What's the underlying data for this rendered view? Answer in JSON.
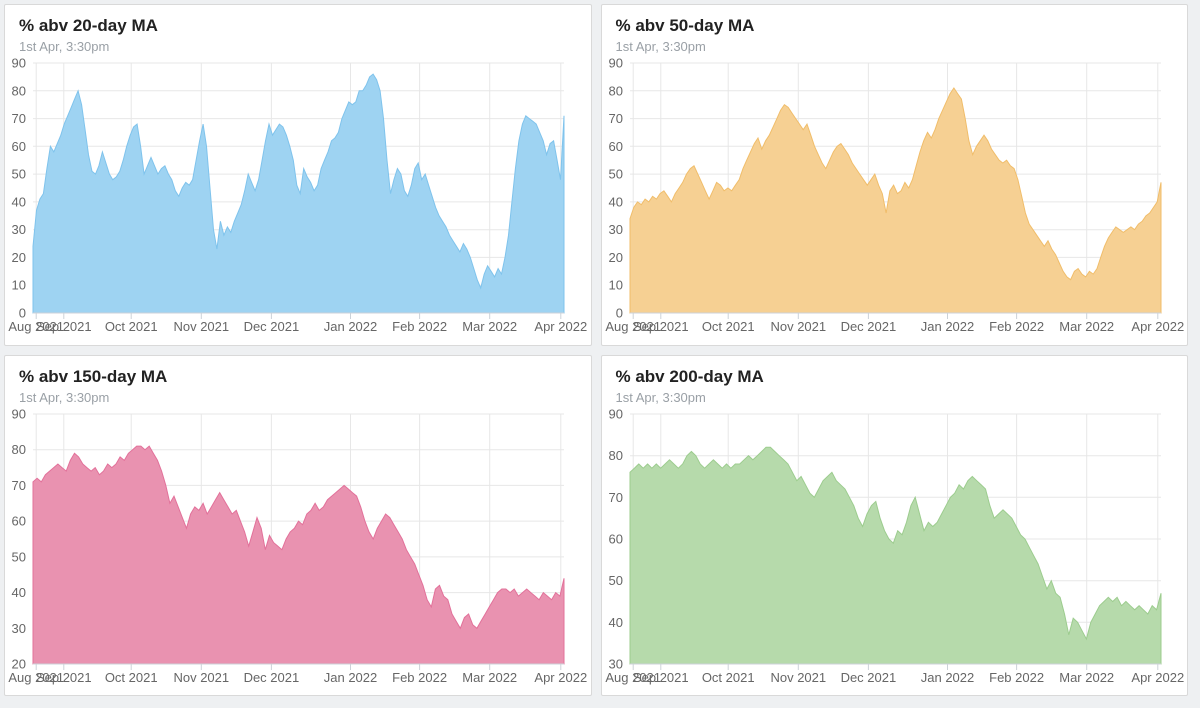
{
  "page": {
    "background": "#eef0f2",
    "card_background": "#ffffff",
    "grid_line_color": "#e7e7e7",
    "axis_line_color": "#ccd2d8",
    "axis_label_color": "#666666"
  },
  "chart_data": [
    {
      "type": "area",
      "title": "% abv 20-day MA",
      "subtitle": "1st Apr, 3:30pm",
      "fill_color": "#9ed3f2",
      "line_color": "#7fc3ec",
      "ylim": [
        0,
        90
      ],
      "ytick_step": 10,
      "grid": true,
      "legend": "none",
      "xticks": [
        {
          "pos": 0.006,
          "label": "Aug 2021"
        },
        {
          "pos": 0.058,
          "label": "Sep 2021"
        },
        {
          "pos": 0.185,
          "label": "Oct 2021"
        },
        {
          "pos": 0.317,
          "label": "Nov 2021"
        },
        {
          "pos": 0.449,
          "label": "Dec 2021"
        },
        {
          "pos": 0.598,
          "label": "Jan 2022"
        },
        {
          "pos": 0.728,
          "label": "Feb 2022"
        },
        {
          "pos": 0.86,
          "label": "Mar 2022"
        },
        {
          "pos": 0.994,
          "label": "Apr 2022"
        }
      ],
      "values": [
        24,
        37,
        41,
        43,
        52,
        60,
        58,
        61,
        64,
        68,
        71,
        74,
        77,
        80,
        75,
        66,
        57,
        51,
        50,
        53,
        58,
        54,
        50,
        48,
        49,
        51,
        55,
        60,
        64,
        67,
        68,
        60,
        50,
        53,
        56,
        53,
        50,
        52,
        53,
        50,
        48,
        44,
        42,
        45,
        47,
        46,
        48,
        55,
        62,
        68,
        60,
        45,
        30,
        23,
        33,
        28,
        31,
        29,
        33,
        36,
        39,
        44,
        50,
        47,
        44,
        48,
        55,
        62,
        68,
        64,
        66,
        68,
        67,
        64,
        60,
        55,
        46,
        43,
        52,
        49,
        47,
        44,
        46,
        52,
        55,
        58,
        62,
        63,
        65,
        70,
        73,
        76,
        75,
        76,
        80,
        80,
        82,
        85,
        86,
        84,
        80,
        70,
        55,
        43,
        48,
        52,
        50,
        44,
        42,
        46,
        52,
        54,
        48,
        50,
        46,
        42,
        38,
        35,
        33,
        31,
        28,
        26,
        24,
        22,
        25,
        23,
        20,
        16,
        12,
        9,
        14,
        17,
        15,
        13,
        16,
        14,
        20,
        28,
        40,
        52,
        62,
        68,
        71,
        70,
        69,
        68,
        65,
        62,
        57,
        61,
        62,
        55,
        48,
        71
      ]
    },
    {
      "type": "area",
      "title": "% abv 50-day MA",
      "subtitle": "1st Apr, 3:30pm",
      "fill_color": "#f6d093",
      "line_color": "#f0bd6a",
      "ylim": [
        0,
        90
      ],
      "ytick_step": 10,
      "grid": true,
      "legend": "none",
      "xticks": [
        {
          "pos": 0.006,
          "label": "Aug 2021"
        },
        {
          "pos": 0.058,
          "label": "Sep 2021"
        },
        {
          "pos": 0.185,
          "label": "Oct 2021"
        },
        {
          "pos": 0.317,
          "label": "Nov 2021"
        },
        {
          "pos": 0.449,
          "label": "Dec 2021"
        },
        {
          "pos": 0.598,
          "label": "Jan 2022"
        },
        {
          "pos": 0.728,
          "label": "Feb 2022"
        },
        {
          "pos": 0.86,
          "label": "Mar 2022"
        },
        {
          "pos": 0.994,
          "label": "Apr 2022"
        }
      ],
      "values": [
        34,
        38,
        40,
        39,
        41,
        40,
        42,
        41,
        43,
        44,
        42,
        40,
        43,
        45,
        47,
        50,
        52,
        53,
        50,
        47,
        44,
        41,
        44,
        47,
        46,
        44,
        45,
        44,
        46,
        48,
        52,
        55,
        58,
        61,
        63,
        59,
        62,
        64,
        67,
        70,
        73,
        75,
        74,
        72,
        70,
        68,
        66,
        68,
        64,
        60,
        57,
        54,
        52,
        55,
        58,
        60,
        61,
        59,
        57,
        54,
        52,
        50,
        48,
        46,
        48,
        50,
        46,
        43,
        36,
        44,
        46,
        43,
        44,
        47,
        45,
        48,
        53,
        58,
        62,
        65,
        63,
        66,
        70,
        73,
        76,
        79,
        81,
        79,
        77,
        70,
        62,
        57,
        60,
        62,
        64,
        62,
        59,
        57,
        55,
        54,
        55,
        53,
        52,
        48,
        42,
        36,
        32,
        30,
        28,
        26,
        24,
        26,
        23,
        21,
        18,
        15,
        13,
        12,
        15,
        16,
        14,
        13,
        15,
        14,
        16,
        20,
        24,
        27,
        29,
        31,
        30,
        29,
        30,
        31,
        30,
        32,
        33,
        35,
        36,
        38,
        40,
        47
      ]
    },
    {
      "type": "area",
      "title": "% abv 150-day MA",
      "subtitle": "1st Apr, 3:30pm",
      "fill_color": "#e992b0",
      "line_color": "#e2719a",
      "ylim": [
        20,
        90
      ],
      "ytick_step": 10,
      "grid": true,
      "legend": "none",
      "xticks": [
        {
          "pos": 0.006,
          "label": "Aug 2021"
        },
        {
          "pos": 0.058,
          "label": "Sep 2021"
        },
        {
          "pos": 0.185,
          "label": "Oct 2021"
        },
        {
          "pos": 0.317,
          "label": "Nov 2021"
        },
        {
          "pos": 0.449,
          "label": "Dec 2021"
        },
        {
          "pos": 0.598,
          "label": "Jan 2022"
        },
        {
          "pos": 0.728,
          "label": "Feb 2022"
        },
        {
          "pos": 0.86,
          "label": "Mar 2022"
        },
        {
          "pos": 0.994,
          "label": "Apr 2022"
        }
      ],
      "values": [
        71,
        72,
        71,
        73,
        74,
        75,
        76,
        75,
        74,
        77,
        79,
        78,
        76,
        75,
        74,
        75,
        73,
        74,
        76,
        75,
        76,
        78,
        77,
        79,
        80,
        81,
        81,
        80,
        81,
        79,
        77,
        74,
        70,
        65,
        67,
        64,
        61,
        58,
        62,
        64,
        63,
        65,
        62,
        64,
        66,
        68,
        66,
        64,
        62,
        63,
        60,
        57,
        53,
        57,
        61,
        58,
        52,
        56,
        54,
        53,
        52,
        55,
        57,
        58,
        60,
        59,
        62,
        63,
        65,
        63,
        64,
        66,
        67,
        68,
        69,
        70,
        69,
        68,
        67,
        64,
        60,
        57,
        55,
        58,
        60,
        62,
        61,
        59,
        57,
        55,
        52,
        50,
        48,
        45,
        42,
        38,
        36,
        41,
        42,
        39,
        38,
        34,
        32,
        30,
        33,
        34,
        31,
        30,
        32,
        34,
        36,
        38,
        40,
        41,
        41,
        40,
        41,
        39,
        40,
        41,
        40,
        39,
        38,
        40,
        39,
        38,
        40,
        39,
        44
      ]
    },
    {
      "type": "area",
      "title": "% abv 200-day MA",
      "subtitle": "1st Apr, 3:30pm",
      "fill_color": "#b6daab",
      "line_color": "#9ccc8e",
      "ylim": [
        30,
        90
      ],
      "ytick_step": 10,
      "grid": true,
      "legend": "none",
      "xticks": [
        {
          "pos": 0.006,
          "label": "Aug 2021"
        },
        {
          "pos": 0.058,
          "label": "Sep 2021"
        },
        {
          "pos": 0.185,
          "label": "Oct 2021"
        },
        {
          "pos": 0.317,
          "label": "Nov 2021"
        },
        {
          "pos": 0.449,
          "label": "Dec 2021"
        },
        {
          "pos": 0.598,
          "label": "Jan 2022"
        },
        {
          "pos": 0.728,
          "label": "Feb 2022"
        },
        {
          "pos": 0.86,
          "label": "Mar 2022"
        },
        {
          "pos": 0.994,
          "label": "Apr 2022"
        }
      ],
      "values": [
        76,
        77,
        78,
        77,
        78,
        77,
        78,
        77,
        78,
        79,
        78,
        77,
        78,
        80,
        81,
        80,
        78,
        77,
        78,
        79,
        78,
        77,
        78,
        77,
        78,
        78,
        79,
        80,
        79,
        80,
        81,
        82,
        82,
        81,
        80,
        79,
        78,
        76,
        74,
        75,
        73,
        71,
        70,
        72,
        74,
        75,
        76,
        74,
        73,
        72,
        70,
        68,
        65,
        63,
        66,
        68,
        69,
        65,
        62,
        60,
        59,
        62,
        61,
        64,
        68,
        70,
        66,
        62,
        64,
        63,
        64,
        66,
        68,
        70,
        71,
        73,
        72,
        74,
        75,
        74,
        73,
        72,
        68,
        65,
        66,
        67,
        66,
        65,
        63,
        61,
        60,
        58,
        56,
        54,
        51,
        48,
        50,
        47,
        46,
        42,
        37,
        41,
        40,
        38,
        36,
        40,
        42,
        44,
        45,
        46,
        45,
        46,
        44,
        45,
        44,
        43,
        44,
        43,
        42,
        44,
        43,
        47
      ]
    }
  ]
}
